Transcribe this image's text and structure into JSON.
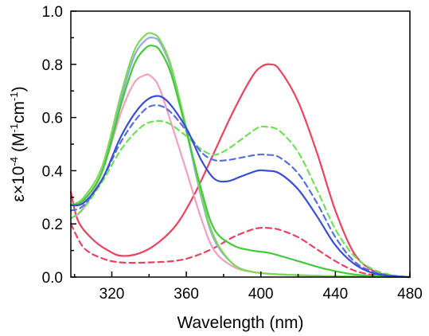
{
  "chart_data": {
    "type": "line",
    "xlabel": "Wavelength (nm)",
    "ylabel": "ε×10",
    "ylabel_exponent": "-4",
    "ylabel_units": "(M",
    "ylabel_units_exp1": "-1",
    "ylabel_units_mid": "cm",
    "ylabel_units_exp2": "-1",
    "ylabel_units_close": ")",
    "xlim": [
      298,
      480
    ],
    "ylim": [
      0,
      1.0
    ],
    "xticks": [
      320,
      360,
      400,
      440,
      480
    ],
    "xtick_labels": [
      "320",
      "360",
      "400",
      "440",
      "480"
    ],
    "yticks": [
      0.0,
      0.2,
      0.4,
      0.6,
      0.8,
      1.0
    ],
    "ytick_labels": [
      "0.0",
      "0.2",
      "0.4",
      "0.6",
      "0.8",
      "1.0"
    ],
    "grid": false,
    "legend": false,
    "series": [
      {
        "color": "#e8435f",
        "style": "solid",
        "x": [
          298,
          302,
          310,
          318,
          325,
          335,
          345,
          355,
          365,
          375,
          385,
          395,
          400,
          405,
          410,
          420,
          430,
          440,
          450,
          460,
          470,
          480
        ],
        "y": [
          0.32,
          0.21,
          0.14,
          0.1,
          0.08,
          0.09,
          0.13,
          0.2,
          0.32,
          0.47,
          0.62,
          0.75,
          0.79,
          0.8,
          0.78,
          0.66,
          0.47,
          0.25,
          0.09,
          0.025,
          0.006,
          0.0
        ]
      },
      {
        "color": "#e8435f",
        "style": "dashed",
        "x": [
          298,
          305,
          315,
          325,
          340,
          355,
          365,
          375,
          385,
          395,
          400,
          405,
          410,
          420,
          430,
          440,
          450,
          460,
          470,
          480
        ],
        "y": [
          0.2,
          0.11,
          0.07,
          0.055,
          0.055,
          0.062,
          0.08,
          0.11,
          0.15,
          0.178,
          0.185,
          0.184,
          0.178,
          0.15,
          0.105,
          0.06,
          0.025,
          0.008,
          0.002,
          0.0
        ]
      },
      {
        "color": "#98a8dc",
        "style": "solid",
        "x": [
          298,
          305,
          315,
          325,
          332,
          338,
          342,
          346,
          352,
          360,
          368,
          375,
          385,
          395,
          410,
          430,
          450,
          480
        ],
        "y": [
          0.27,
          0.29,
          0.4,
          0.67,
          0.83,
          0.89,
          0.9,
          0.88,
          0.78,
          0.55,
          0.3,
          0.14,
          0.05,
          0.02,
          0.01,
          0.005,
          0.002,
          0.0
        ]
      },
      {
        "color": "#f0a0c0",
        "style": "solid",
        "x": [
          298,
          305,
          315,
          325,
          332,
          338,
          341,
          345,
          350,
          360,
          368,
          375,
          385,
          395,
          410,
          430,
          450,
          480
        ],
        "y": [
          0.22,
          0.26,
          0.4,
          0.62,
          0.73,
          0.76,
          0.755,
          0.72,
          0.62,
          0.4,
          0.22,
          0.1,
          0.04,
          0.02,
          0.01,
          0.005,
          0.002,
          0.0
        ]
      },
      {
        "color": "#7ed957",
        "style": "solid",
        "x": [
          298,
          305,
          315,
          325,
          332,
          338,
          342,
          346,
          352,
          360,
          368,
          375,
          385,
          395,
          410,
          430,
          450,
          480
        ],
        "y": [
          0.27,
          0.3,
          0.42,
          0.69,
          0.85,
          0.91,
          0.915,
          0.89,
          0.79,
          0.56,
          0.31,
          0.15,
          0.05,
          0.02,
          0.01,
          0.005,
          0.002,
          0.0
        ]
      },
      {
        "color": "#44c93d",
        "style": "solid",
        "x": [
          298,
          305,
          315,
          325,
          332,
          338,
          342,
          346,
          352,
          360,
          368,
          375,
          385,
          395,
          405,
          420,
          435,
          450,
          465,
          480
        ],
        "y": [
          0.27,
          0.29,
          0.4,
          0.65,
          0.8,
          0.86,
          0.87,
          0.85,
          0.76,
          0.55,
          0.33,
          0.18,
          0.12,
          0.1,
          0.09,
          0.06,
          0.03,
          0.01,
          0.003,
          0.0
        ]
      },
      {
        "color": "#6fe05a",
        "style": "dashed",
        "x": [
          298,
          305,
          315,
          325,
          335,
          342,
          350,
          360,
          368,
          375,
          382,
          390,
          398,
          403,
          410,
          420,
          430,
          440,
          450,
          460,
          470,
          480
        ],
        "y": [
          0.22,
          0.26,
          0.36,
          0.48,
          0.56,
          0.585,
          0.58,
          0.53,
          0.48,
          0.46,
          0.48,
          0.52,
          0.56,
          0.565,
          0.55,
          0.47,
          0.33,
          0.18,
          0.08,
          0.03,
          0.008,
          0.0
        ]
      },
      {
        "color": "#5a6ee0",
        "style": "dashed",
        "x": [
          298,
          305,
          315,
          325,
          335,
          342,
          350,
          360,
          368,
          375,
          382,
          390,
          398,
          403,
          410,
          420,
          430,
          440,
          450,
          460,
          470,
          480
        ],
        "y": [
          0.25,
          0.27,
          0.37,
          0.51,
          0.61,
          0.645,
          0.63,
          0.55,
          0.47,
          0.44,
          0.44,
          0.45,
          0.46,
          0.46,
          0.45,
          0.39,
          0.28,
          0.15,
          0.06,
          0.02,
          0.005,
          0.0
        ]
      },
      {
        "color": "#3a4fd0",
        "style": "solid",
        "x": [
          298,
          305,
          315,
          325,
          335,
          343,
          350,
          360,
          368,
          375,
          382,
          390,
          398,
          403,
          410,
          420,
          430,
          440,
          450,
          460,
          470,
          480
        ],
        "y": [
          0.27,
          0.28,
          0.37,
          0.53,
          0.64,
          0.68,
          0.66,
          0.56,
          0.44,
          0.37,
          0.36,
          0.38,
          0.4,
          0.4,
          0.39,
          0.33,
          0.23,
          0.12,
          0.05,
          0.015,
          0.004,
          0.0
        ]
      }
    ]
  }
}
